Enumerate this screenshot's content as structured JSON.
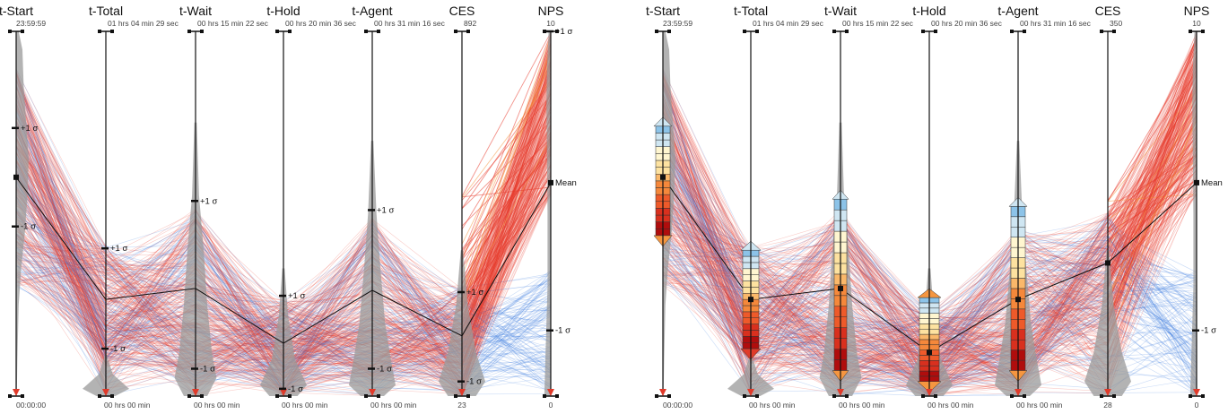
{
  "chart_data": [
    {
      "type": "parallel-coordinates",
      "panel": "left",
      "axes": [
        {
          "key": "t_start",
          "label": "t-Start",
          "max": "23:59:59",
          "min": "00:00:00",
          "stats": [
            {
              "label": "+1 σ",
              "frac": 0.735
            },
            {
              "label": "Mean",
              "frac": 0.6,
              "hidden": true
            },
            {
              "label": "-1 σ",
              "frac": 0.465
            }
          ],
          "mean_frac": 0.6
        },
        {
          "key": "t_total",
          "label": "t-Total",
          "max": "01 hrs 04 min 29 sec",
          "min": "00 hrs 00 min",
          "stats": [
            {
              "label": "+1 σ",
              "frac": 0.405
            },
            {
              "label": "-1 σ",
              "frac": 0.13
            }
          ],
          "mean_frac": 0.265
        },
        {
          "key": "t_wait",
          "label": "t-Wait",
          "max": "00 hrs 15 min 22 sec",
          "min": "00 hrs 00 min",
          "stats": [
            {
              "label": "+1 σ",
              "frac": 0.535
            },
            {
              "label": "-1 σ",
              "frac": 0.075
            }
          ],
          "mean_frac": 0.295
        },
        {
          "key": "t_hold",
          "label": "t-Hold",
          "max": "00 hrs 20 min 36 sec",
          "min": "00 hrs 00 min",
          "stats": [
            {
              "label": "+1 σ",
              "frac": 0.275
            },
            {
              "label": "-1 σ",
              "frac": 0.02
            }
          ],
          "mean_frac": 0.145
        },
        {
          "key": "t_agent",
          "label": "t-Agent",
          "max": "00 hrs 31 min 16 sec",
          "min": "00 hrs 00 min",
          "stats": [
            {
              "label": "+1 σ",
              "frac": 0.51
            },
            {
              "label": "-1 σ",
              "frac": 0.075
            }
          ],
          "mean_frac": 0.29
        },
        {
          "key": "ces",
          "label": "CES",
          "max": "892",
          "min": "23",
          "stats": [
            {
              "label": "+1 σ",
              "frac": 0.285
            },
            {
              "label": "-1 σ",
              "frac": 0.04
            }
          ],
          "mean_frac": 0.165
        },
        {
          "key": "nps",
          "label": "NPS",
          "max": "10",
          "min": "0",
          "stats": [
            {
              "label": "+1 σ",
              "frac": 1.0
            },
            {
              "label": "Mean",
              "frac": 0.585
            },
            {
              "label": "-1 σ",
              "frac": 0.18
            }
          ],
          "mean_frac": 0.585
        }
      ]
    },
    {
      "type": "parallel-coordinates",
      "panel": "right",
      "axes": [
        {
          "key": "t_start",
          "label": "t-Start",
          "max": "23:59:59",
          "min": "00:00:00",
          "mean_frac": 0.6
        },
        {
          "key": "t_total",
          "label": "t-Total",
          "max": "01 hrs 04 min 29 sec",
          "min": "00 hrs 00 min",
          "mean_frac": 0.265
        },
        {
          "key": "t_wait",
          "label": "t-Wait",
          "max": "00 hrs 15 min 22 sec",
          "min": "00 hrs 00 min",
          "mean_frac": 0.295
        },
        {
          "key": "t_hold",
          "label": "t-Hold",
          "max": "00 hrs 20 min 36 sec",
          "min": "00 hrs 00 min",
          "mean_frac": 0.12
        },
        {
          "key": "t_agent",
          "label": "t-Agent",
          "max": "00 hrs 31 min 16 sec",
          "min": "00 hrs 00 min",
          "mean_frac": 0.265
        },
        {
          "key": "ces",
          "label": "CES",
          "max": "350",
          "min": "28",
          "mean_frac": 0.365
        },
        {
          "key": "nps",
          "label": "NPS",
          "max": "10",
          "min": "0",
          "stats": [
            {
              "label": "Mean",
              "frac": 0.585
            },
            {
              "label": "-1 σ",
              "frac": 0.18
            }
          ],
          "mean_frac": 0.585
        }
      ]
    }
  ],
  "colors": {
    "line_red": "#e8392a",
    "line_blue": "#3a7be0",
    "density_gray": "#9a9a9a",
    "axis": "#111111",
    "arrow": "#e03a2a",
    "nps_orange": "#f59640"
  },
  "icons": {
    "range_handle": "square-handle-icon",
    "bottom_marker": "red-arrow-icon"
  }
}
